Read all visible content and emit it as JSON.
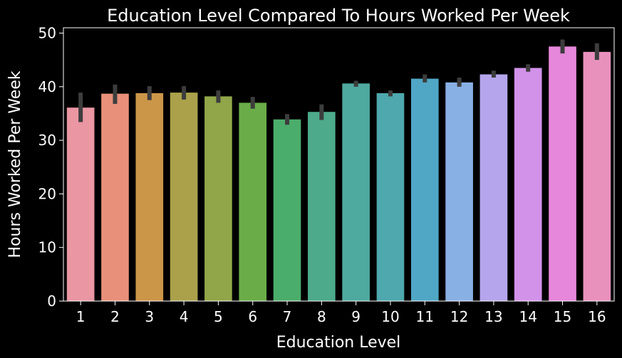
{
  "chart_data": {
    "type": "bar",
    "title": "Education Level Compared To Hours Worked Per Week",
    "xlabel": "Education Level",
    "ylabel": "Hours Worked Per Week",
    "ylim": [
      0,
      51
    ],
    "yticks": [
      0,
      10,
      20,
      30,
      40,
      50
    ],
    "categories": [
      "1",
      "2",
      "3",
      "4",
      "5",
      "6",
      "7",
      "8",
      "9",
      "10",
      "11",
      "12",
      "13",
      "14",
      "15",
      "16"
    ],
    "values": [
      36.1,
      38.7,
      38.8,
      38.9,
      38.2,
      37.0,
      33.9,
      35.3,
      40.6,
      38.8,
      41.5,
      40.8,
      42.3,
      43.5,
      47.5,
      46.5
    ],
    "error_low": [
      33.4,
      36.8,
      37.5,
      37.6,
      37.0,
      35.9,
      32.9,
      33.8,
      40.0,
      38.2,
      40.8,
      40.0,
      41.7,
      42.8,
      46.2,
      45.0
    ],
    "error_high": [
      38.9,
      40.4,
      40.1,
      40.1,
      39.3,
      38.1,
      34.9,
      36.7,
      41.1,
      39.3,
      42.3,
      41.7,
      43.0,
      44.2,
      48.8,
      48.1
    ],
    "colors": [
      "#ea96a3",
      "#e8907a",
      "#cc9649",
      "#aba14b",
      "#91a649",
      "#6aad48",
      "#4bad6b",
      "#4daa8b",
      "#4ea99f",
      "#4ea8ad",
      "#50a7c5",
      "#88b0e5",
      "#b5a5ec",
      "#d292ea",
      "#e787db",
      "#e991bd"
    ],
    "error_color": "#3d3d3d",
    "grid": false,
    "legend": "none"
  }
}
